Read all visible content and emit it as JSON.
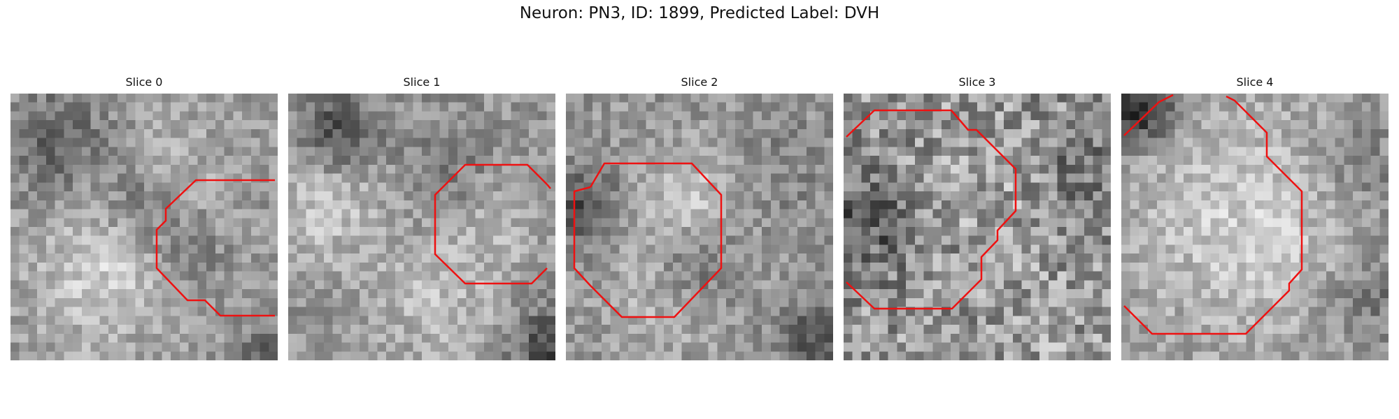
{
  "figure": {
    "title": "Neuron: PN3, ID: 1899, Predicted Label: DVH",
    "contour_color": "#ee1111"
  },
  "slices": [
    {
      "label": "Slice 0",
      "image": "grayscale-neuron-crop-slice-0",
      "contour": "red-outline-slice-0"
    },
    {
      "label": "Slice 1",
      "image": "grayscale-neuron-crop-slice-1",
      "contour": "red-outline-slice-1"
    },
    {
      "label": "Slice 2",
      "image": "grayscale-neuron-crop-slice-2",
      "contour": "red-outline-slice-2"
    },
    {
      "label": "Slice 3",
      "image": "grayscale-neuron-crop-slice-3",
      "contour": "red-outline-slice-3"
    },
    {
      "label": "Slice 4",
      "image": "grayscale-neuron-crop-slice-4",
      "contour": "red-outline-slice-4"
    }
  ]
}
